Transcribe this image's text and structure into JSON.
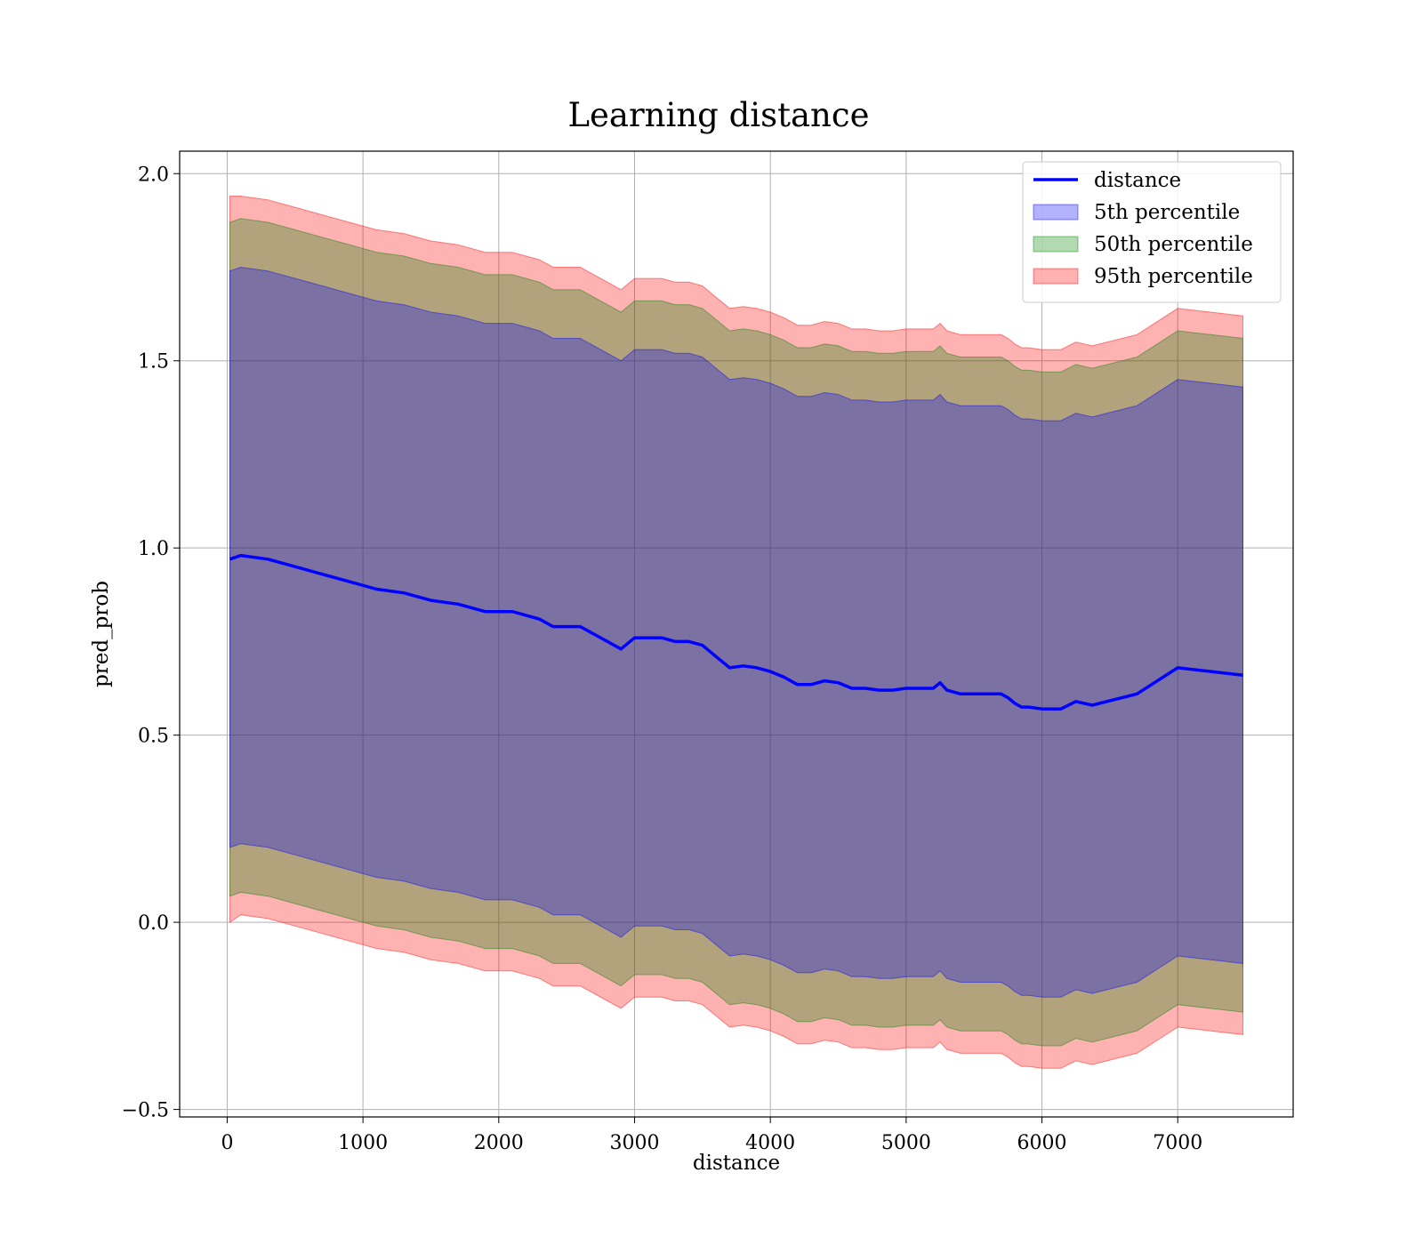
{
  "chart_data": {
    "type": "line",
    "title": "Learning distance",
    "xlabel": "distance",
    "ylabel": "pred_prob",
    "xlim": [
      -350,
      7850
    ],
    "ylim": [
      -0.52,
      2.06
    ],
    "xticks": [
      0,
      1000,
      2000,
      3000,
      4000,
      5000,
      6000,
      7000
    ],
    "xtick_labels": [
      "0",
      "1000",
      "2000",
      "3000",
      "4000",
      "5000",
      "6000",
      "7000"
    ],
    "yticks": [
      -0.5,
      0.0,
      0.5,
      1.0,
      1.5,
      2.0
    ],
    "ytick_labels": [
      "−0.5",
      "0.0",
      "0.5",
      "1.0",
      "1.5",
      "2.0"
    ],
    "grid": true,
    "legend_position": "top-right",
    "x": [
      20,
      100,
      300,
      500,
      700,
      900,
      1100,
      1300,
      1500,
      1700,
      1900,
      2100,
      2300,
      2400,
      2500,
      2600,
      2700,
      2800,
      2900,
      3000,
      3100,
      3200,
      3300,
      3400,
      3500,
      3600,
      3700,
      3800,
      3900,
      4000,
      4100,
      4200,
      4300,
      4400,
      4500,
      4600,
      4700,
      4800,
      4900,
      5000,
      5100,
      5200,
      5250,
      5300,
      5400,
      5500,
      5600,
      5700,
      5750,
      5800,
      5850,
      5900,
      6000,
      6140,
      6250,
      6370,
      6700,
      7000,
      7480
    ],
    "series": [
      {
        "name": "distance",
        "color": "#0000ff",
        "kind": "line",
        "values": [
          0.97,
          0.98,
          0.97,
          0.95,
          0.93,
          0.91,
          0.89,
          0.88,
          0.86,
          0.85,
          0.83,
          0.83,
          0.81,
          0.79,
          0.79,
          0.79,
          0.77,
          0.75,
          0.73,
          0.76,
          0.76,
          0.76,
          0.75,
          0.75,
          0.74,
          0.71,
          0.68,
          0.685,
          0.68,
          0.67,
          0.655,
          0.635,
          0.635,
          0.645,
          0.64,
          0.625,
          0.625,
          0.62,
          0.62,
          0.625,
          0.625,
          0.625,
          0.64,
          0.62,
          0.61,
          0.61,
          0.61,
          0.61,
          0.6,
          0.585,
          0.575,
          0.575,
          0.57,
          0.57,
          0.59,
          0.58,
          0.61,
          0.68,
          0.66
        ]
      }
    ],
    "bands": [
      {
        "name": "95th percentile",
        "color": "#ff0000",
        "opacity": 0.3,
        "half_width": [
          0.97,
          0.96,
          0.96,
          0.96,
          0.96,
          0.96,
          0.96,
          0.96,
          0.96,
          0.96,
          0.96,
          0.96,
          0.96,
          0.96,
          0.96,
          0.96,
          0.96,
          0.96,
          0.96,
          0.96,
          0.96,
          0.96,
          0.96,
          0.96,
          0.96,
          0.96,
          0.96,
          0.96,
          0.96,
          0.96,
          0.96,
          0.96,
          0.96,
          0.96,
          0.96,
          0.96,
          0.96,
          0.96,
          0.96,
          0.96,
          0.96,
          0.96,
          0.96,
          0.96,
          0.96,
          0.96,
          0.96,
          0.96,
          0.96,
          0.96,
          0.96,
          0.96,
          0.96,
          0.96,
          0.96,
          0.96,
          0.96,
          0.96,
          0.96
        ]
      },
      {
        "name": "50th percentile",
        "color": "#008000",
        "opacity": 0.3,
        "half_width": [
          0.9,
          0.9,
          0.9,
          0.9,
          0.9,
          0.9,
          0.9,
          0.9,
          0.9,
          0.9,
          0.9,
          0.9,
          0.9,
          0.9,
          0.9,
          0.9,
          0.9,
          0.9,
          0.9,
          0.9,
          0.9,
          0.9,
          0.9,
          0.9,
          0.9,
          0.9,
          0.9,
          0.9,
          0.9,
          0.9,
          0.9,
          0.9,
          0.9,
          0.9,
          0.9,
          0.9,
          0.9,
          0.9,
          0.9,
          0.9,
          0.9,
          0.9,
          0.9,
          0.9,
          0.9,
          0.9,
          0.9,
          0.9,
          0.9,
          0.9,
          0.9,
          0.9,
          0.9,
          0.9,
          0.9,
          0.9,
          0.9,
          0.9,
          0.9
        ]
      },
      {
        "name": "5th percentile",
        "color": "#0000ff",
        "opacity": 0.3,
        "half_width": [
          0.77,
          0.77,
          0.77,
          0.77,
          0.77,
          0.77,
          0.77,
          0.77,
          0.77,
          0.77,
          0.77,
          0.77,
          0.77,
          0.77,
          0.77,
          0.77,
          0.77,
          0.77,
          0.77,
          0.77,
          0.77,
          0.77,
          0.77,
          0.77,
          0.77,
          0.77,
          0.77,
          0.77,
          0.77,
          0.77,
          0.77,
          0.77,
          0.77,
          0.77,
          0.77,
          0.77,
          0.77,
          0.77,
          0.77,
          0.77,
          0.77,
          0.77,
          0.77,
          0.77,
          0.77,
          0.77,
          0.77,
          0.77,
          0.77,
          0.77,
          0.77,
          0.77,
          0.77,
          0.77,
          0.77,
          0.77,
          0.77,
          0.77,
          0.77
        ]
      }
    ],
    "legend": [
      {
        "label": "distance",
        "kind": "line",
        "color": "#0000ff"
      },
      {
        "label": "5th percentile",
        "kind": "patch",
        "color": "#0000ff"
      },
      {
        "label": "50th percentile",
        "kind": "patch",
        "color": "#008000"
      },
      {
        "label": "95th percentile",
        "kind": "patch",
        "color": "#ff0000"
      }
    ]
  }
}
